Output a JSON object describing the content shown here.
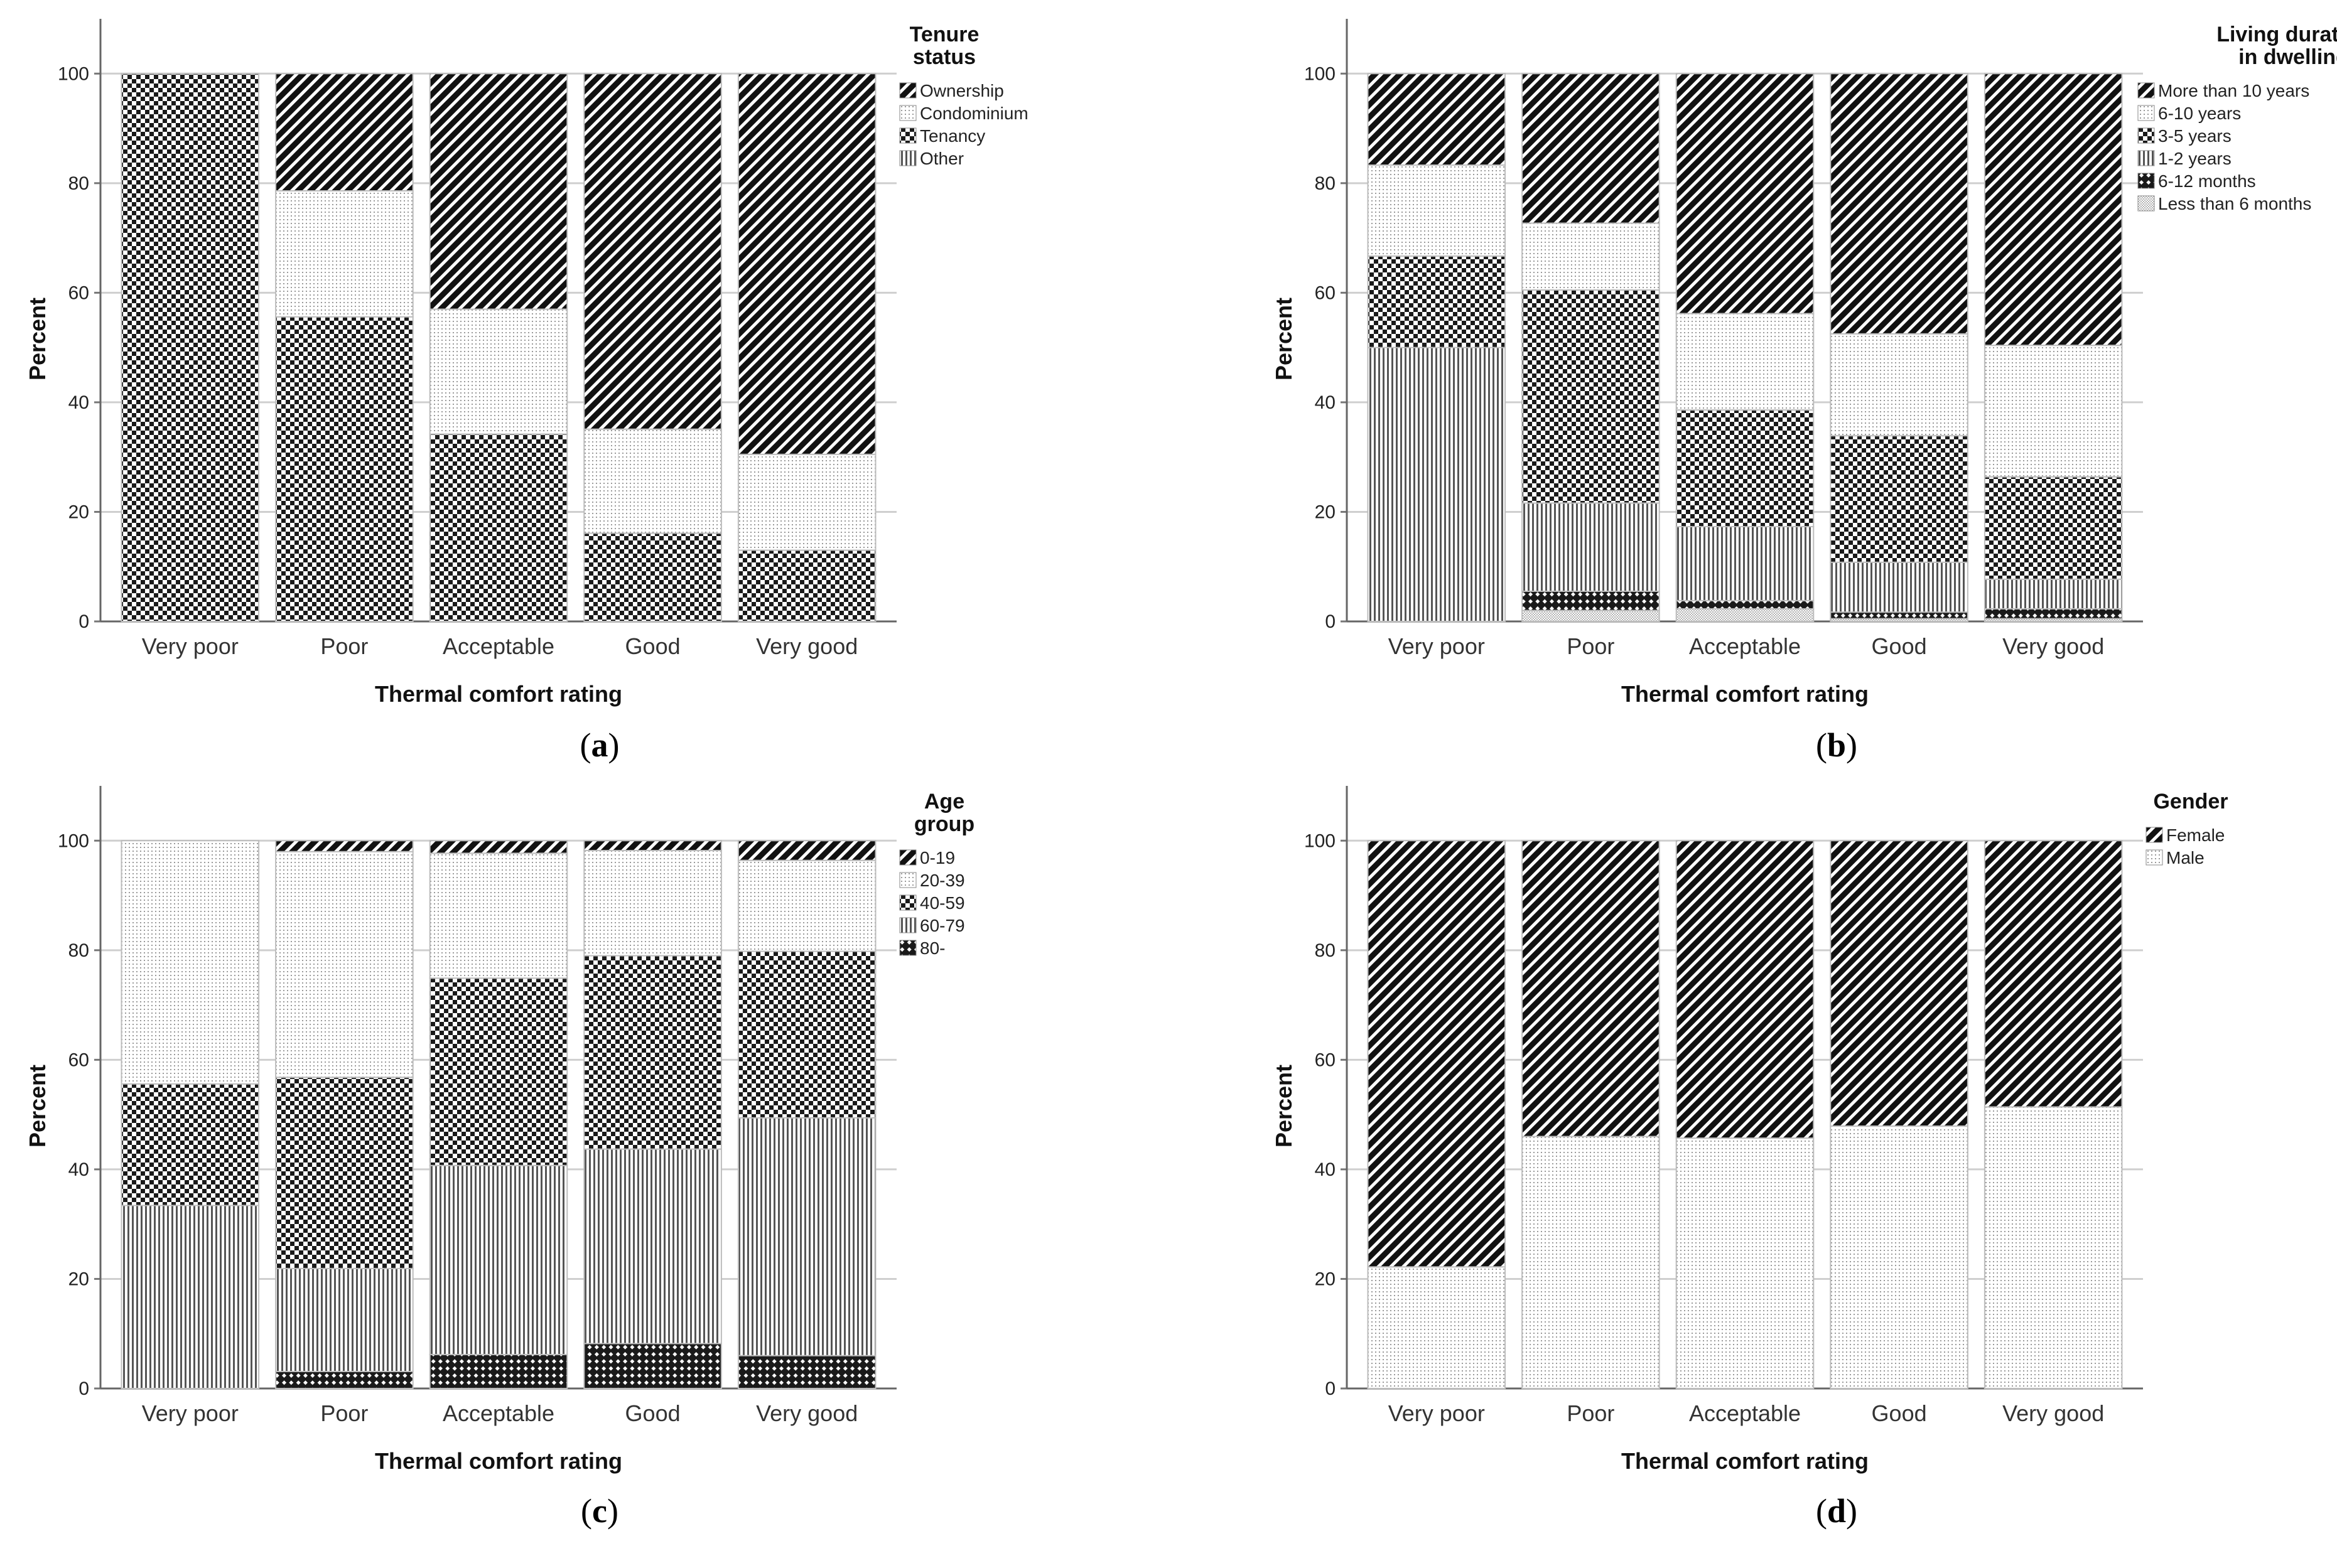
{
  "chart_data": [
    {
      "type": "bar",
      "stacked": true,
      "panel_label": {
        "open": "(",
        "letter": "a",
        "close": ")"
      },
      "xlabel": "Thermal comfort rating",
      "ylabel": "Percent",
      "ylim": [
        0,
        110
      ],
      "yticks": [
        0,
        20,
        40,
        60,
        80,
        100
      ],
      "categories": [
        "Very poor",
        "Poor",
        "Acceptable",
        "Good",
        "Very good"
      ],
      "legend_title": [
        "Tenure",
        "status"
      ],
      "legend_placement": "top-right",
      "series": [
        {
          "name": "Ownership",
          "pattern": "diag",
          "values": [
            0,
            21.4,
            43,
            64.9,
            69.5
          ]
        },
        {
          "name": "Condominium",
          "pattern": "dots",
          "values": [
            0,
            23,
            22.8,
            19,
            17.5
          ]
        },
        {
          "name": "Tenancy",
          "pattern": "check",
          "values": [
            100,
            55.6,
            34.2,
            16.1,
            13
          ]
        },
        {
          "name": "Other",
          "pattern": "vlines",
          "values": [
            0,
            0,
            0,
            0,
            0
          ]
        }
      ]
    },
    {
      "type": "bar",
      "stacked": true,
      "panel_label": {
        "open": "(",
        "letter": "b",
        "close": ")"
      },
      "xlabel": "Thermal comfort rating",
      "ylabel": "Percent",
      "ylim": [
        0,
        110
      ],
      "yticks": [
        0,
        20,
        40,
        60,
        80,
        100
      ],
      "categories": [
        "Very poor",
        "Poor",
        "Acceptable",
        "Good",
        "Very good"
      ],
      "legend_title": [
        "Living duration",
        "in dwelling"
      ],
      "legend_placement": "top-right",
      "series": [
        {
          "name": "More than 10 years",
          "pattern": "diag",
          "values": [
            16.7,
            27.3,
            43.8,
            47.5,
            49.6
          ]
        },
        {
          "name": "6-10 years",
          "pattern": "dots",
          "values": [
            16.6,
            12.2,
            17.6,
            18.6,
            24
          ]
        },
        {
          "name": "3-5 years",
          "pattern": "check",
          "values": [
            16.7,
            38.9,
            21.3,
            23.1,
            18.7
          ]
        },
        {
          "name": "1-2 years",
          "pattern": "vlines",
          "values": [
            50,
            16.1,
            13.5,
            9.1,
            5.4
          ]
        },
        {
          "name": "6-12 months",
          "pattern": "xcheck",
          "values": [
            0,
            3.5,
            1.5,
            1.2,
            1.8
          ]
        },
        {
          "name": "Less than 6 months",
          "pattern": "fine",
          "values": [
            0,
            2,
            2.3,
            0.5,
            0.5
          ]
        }
      ]
    },
    {
      "type": "bar",
      "stacked": true,
      "panel_label": {
        "open": "(",
        "letter": "c",
        "close": ")"
      },
      "xlabel": "Thermal comfort rating",
      "ylabel": "Percent",
      "ylim": [
        0,
        110
      ],
      "yticks": [
        0,
        20,
        40,
        60,
        80,
        100
      ],
      "categories": [
        "Very poor",
        "Poor",
        "Acceptable",
        "Good",
        "Very good"
      ],
      "legend_title": [
        "Age",
        "group"
      ],
      "legend_placement": "top-right",
      "series": [
        {
          "name": "0-19",
          "pattern": "diag",
          "values": [
            0,
            2,
            2.3,
            1.8,
            3.6
          ]
        },
        {
          "name": "20-39",
          "pattern": "dots",
          "values": [
            44.4,
            41.2,
            22.8,
            19.2,
            16.6
          ]
        },
        {
          "name": "40-59",
          "pattern": "check",
          "values": [
            22.2,
            34.9,
            34.2,
            35.3,
            30.4
          ]
        },
        {
          "name": "60-79",
          "pattern": "vlines",
          "values": [
            33.4,
            18.8,
            34.5,
            35.5,
            43.4
          ]
        },
        {
          "name": "80-",
          "pattern": "xcheck",
          "values": [
            0,
            3.1,
            6.2,
            8.2,
            6
          ]
        }
      ]
    },
    {
      "type": "bar",
      "stacked": true,
      "panel_label": {
        "open": "(",
        "letter": "d",
        "close": ")"
      },
      "xlabel": "Thermal comfort rating",
      "ylabel": "Percent",
      "ylim": [
        0,
        110
      ],
      "yticks": [
        0,
        20,
        40,
        60,
        80,
        100
      ],
      "categories": [
        "Very poor",
        "Poor",
        "Acceptable",
        "Good",
        "Very good"
      ],
      "legend_title": [
        "Gender"
      ],
      "legend_placement": "top-right",
      "series": [
        {
          "name": "Female",
          "pattern": "diag",
          "values": [
            77.8,
            54,
            54.3,
            52.1,
            48.6
          ]
        },
        {
          "name": "Male",
          "pattern": "dots",
          "values": [
            22.2,
            46,
            45.7,
            47.9,
            51.4
          ]
        }
      ]
    }
  ]
}
